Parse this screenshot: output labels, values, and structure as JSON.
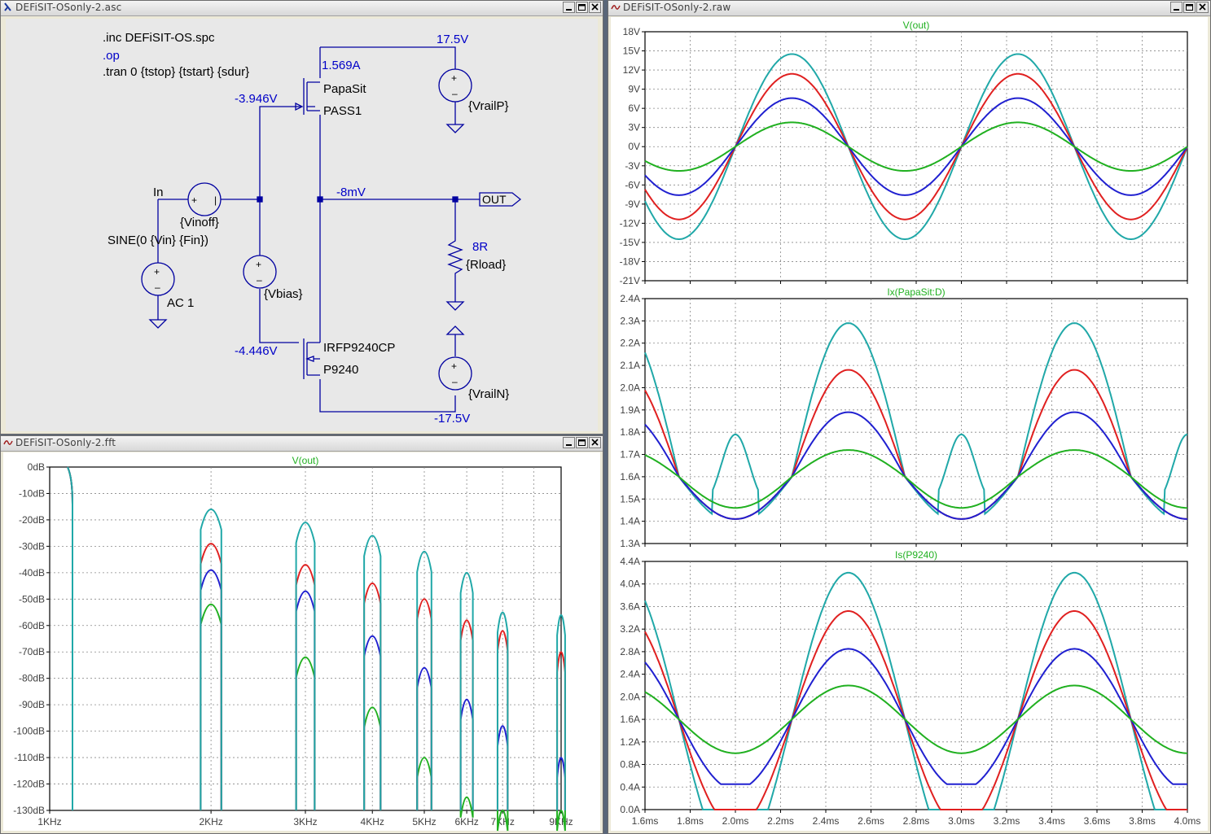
{
  "schematic": {
    "title": "DEFiSIT-OSonly-2.asc",
    "directives": [
      ".inc DEFiSIT-OS.spc",
      ".op",
      ".tran 0 {tstop} {tstart} {sdur}"
    ],
    "labels": {
      "in": "In",
      "vinoff": "{Vinoff}",
      "sine": "SINE(0 {Vin} {Fin})",
      "ac": "AC 1",
      "vbias": "{Vbias}",
      "papasit": "PapaSit",
      "pass1": "PASS1",
      "irfp": "IRFP9240CP",
      "p9240": "P9240",
      "vrailp": "{VrailP}",
      "vrailn": "{VrailN}",
      "r8": "8R",
      "rload": "{Rload}",
      "out": "OUT"
    },
    "op_values": {
      "vp": "17.5V",
      "vn": "-17.5V",
      "ip": "1.569A",
      "vg1": "-3.946V",
      "vg2": "-4.446V",
      "vout": "-8mV"
    }
  },
  "raw": {
    "title": "DEFiSIT-OSonly-2.raw",
    "x_ticks": [
      "1.6ms",
      "1.8ms",
      "2.0ms",
      "2.2ms",
      "2.4ms",
      "2.6ms",
      "2.8ms",
      "3.0ms",
      "3.2ms",
      "3.4ms",
      "3.6ms",
      "3.8ms",
      "4.0ms"
    ]
  },
  "fft": {
    "title": "DEFiSIT-OSonly-2.fft"
  },
  "colors": {
    "cyan": "#20a8a8",
    "red": "#e02020",
    "blue": "#2020d0",
    "green": "#20b020",
    "wire": "#0000a0",
    "label_blue": "#0000c8",
    "trace_title": "#20b020"
  },
  "chart_data": [
    {
      "type": "line",
      "title": "V(out)",
      "ylim": [
        -21,
        18
      ],
      "y_ticks": [
        "18V",
        "15V",
        "12V",
        "9V",
        "6V",
        "3V",
        "0V",
        "-3V",
        "-6V",
        "-9V",
        "-12V",
        "-15V",
        "-18V",
        "-21V"
      ],
      "x_range_ms": [
        1.6,
        4.0
      ],
      "series": [
        {
          "color": "cyan",
          "amplitude_v": 14.5,
          "offset_v": 0
        },
        {
          "color": "red",
          "amplitude_v": 11.4,
          "offset_v": 0
        },
        {
          "color": "blue",
          "amplitude_v": 7.6,
          "offset_v": 0
        },
        {
          "color": "green",
          "amplitude_v": 3.8,
          "offset_v": 0
        }
      ]
    },
    {
      "type": "line",
      "title": "Ix(PapaSit:D)",
      "ylim": [
        1.3,
        2.4
      ],
      "y_ticks": [
        "2.4A",
        "2.3A",
        "2.2A",
        "2.1A",
        "2.0A",
        "1.9A",
        "1.8A",
        "1.7A",
        "1.6A",
        "1.5A",
        "1.4A",
        "1.3A"
      ],
      "x_range_ms": [
        1.6,
        4.0
      ],
      "series": [
        {
          "color": "cyan",
          "peak_a": 2.29,
          "center_a": 1.6,
          "floor_a": 1.39
        },
        {
          "color": "red",
          "peak_a": 2.08,
          "center_a": 1.6,
          "floor_a": 1.41
        },
        {
          "color": "blue",
          "peak_a": 1.89,
          "center_a": 1.6,
          "floor_a": 1.41
        },
        {
          "color": "green",
          "peak_a": 1.72,
          "center_a": 1.6,
          "floor_a": 1.46
        }
      ]
    },
    {
      "type": "line",
      "title": "Is(P9240)",
      "ylim": [
        0.0,
        4.4
      ],
      "y_ticks": [
        "4.4A",
        "4.0A",
        "3.6A",
        "3.2A",
        "2.8A",
        "2.4A",
        "2.0A",
        "1.6A",
        "1.2A",
        "0.8A",
        "0.4A",
        "0.0A"
      ],
      "x_range_ms": [
        1.6,
        4.0
      ],
      "series": [
        {
          "color": "cyan",
          "peak_a": 4.2,
          "center_a": 1.6,
          "floor_a": 0.0
        },
        {
          "color": "red",
          "peak_a": 3.52,
          "center_a": 1.6,
          "floor_a": 0.0
        },
        {
          "color": "blue",
          "peak_a": 2.85,
          "center_a": 1.6,
          "floor_a": 0.45
        },
        {
          "color": "green",
          "peak_a": 2.2,
          "center_a": 1.6,
          "floor_a": 1.0
        }
      ]
    },
    {
      "type": "line",
      "title": "V(out)",
      "ylim": [
        -130,
        0
      ],
      "y_ticks": [
        "0dB",
        "-10dB",
        "-20dB",
        "-30dB",
        "-40dB",
        "-50dB",
        "-60dB",
        "-70dB",
        "-80dB",
        "-90dB",
        "-100dB",
        "-110dB",
        "-120dB",
        "-130dB"
      ],
      "x_ticks": [
        "1KHz",
        "2KHz",
        "3KHz",
        "4KHz",
        "5KHz",
        "6KHz",
        "7KHz",
        "9KHz"
      ],
      "x_khz": [
        1,
        2,
        3,
        4,
        5,
        6,
        7,
        9
      ],
      "harmonics_db": {
        "cyan": [
          0,
          -16,
          -21,
          -26,
          -32,
          -40,
          -55,
          -56
        ],
        "red": [
          0,
          -29,
          -37,
          -44,
          -50,
          -58,
          -62,
          -70
        ],
        "blue": [
          0,
          -39,
          -47,
          -64,
          -76,
          -88,
          -98,
          -110
        ],
        "green": [
          0,
          -52,
          -72,
          -91,
          -110,
          -125,
          -130,
          -130
        ]
      }
    }
  ]
}
